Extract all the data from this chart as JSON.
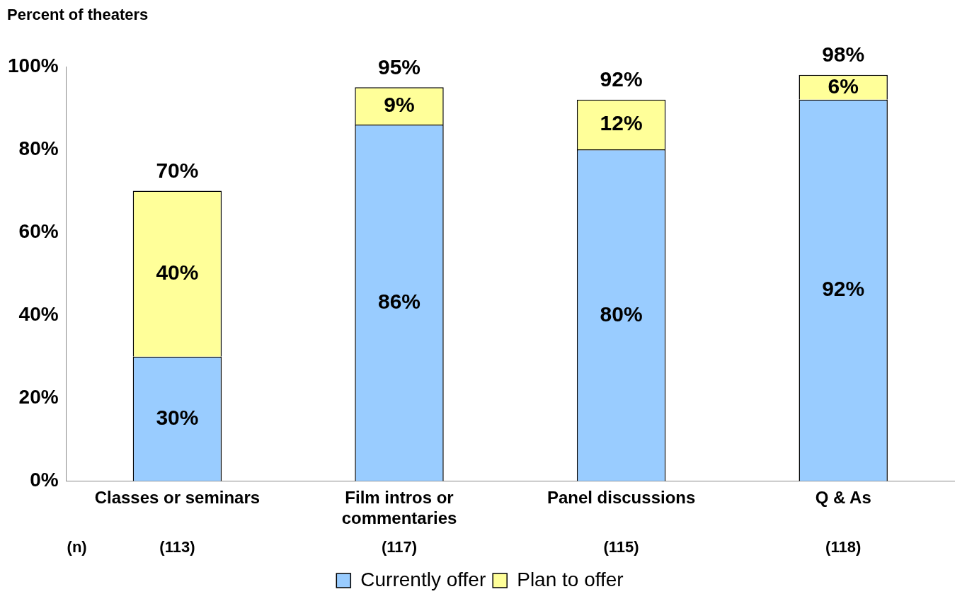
{
  "chart_data": {
    "type": "bar",
    "stacked": true,
    "ylabel": "Percent of theaters",
    "categories": [
      "Classes or seminars",
      "Film intros or commentaries",
      "Panel discussions",
      "Q & As"
    ],
    "series": [
      {
        "name": "Currently offer",
        "color": "#99ccff",
        "values": [
          30,
          86,
          80,
          92
        ],
        "value_labels": [
          "30%",
          "86%",
          "80%",
          "92%"
        ]
      },
      {
        "name": "Plan to offer",
        "color": "#ffff99",
        "values": [
          40,
          9,
          12,
          6
        ],
        "value_labels": [
          "40%",
          "9%",
          "12%",
          "6%"
        ]
      }
    ],
    "totals": [
      "70%",
      "95%",
      "92%",
      "98%"
    ],
    "ylim": [
      0,
      100
    ],
    "yticks": [
      {
        "value": 0,
        "label": "0%"
      },
      {
        "value": 20,
        "label": "20%"
      },
      {
        "value": 40,
        "label": "40%"
      },
      {
        "value": 60,
        "label": "60%"
      },
      {
        "value": 80,
        "label": "80%"
      },
      {
        "value": 100,
        "label": "100%"
      }
    ],
    "grid": false,
    "legend": "bottom",
    "annotations": [
      "(n)",
      "(113)",
      "(117)",
      "(115)",
      "(118)"
    ]
  }
}
